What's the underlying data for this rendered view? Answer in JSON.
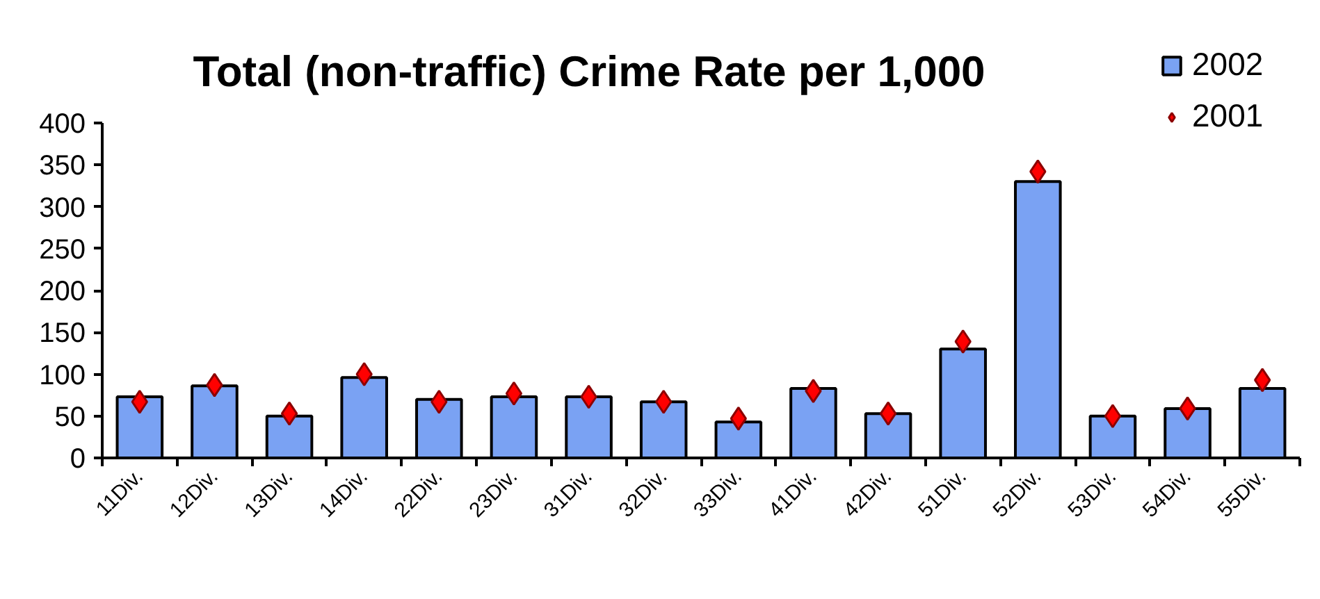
{
  "chart_data": {
    "type": "bar",
    "title": "Total (non-traffic) Crime Rate per 1,000",
    "categories": [
      "11Div.",
      "12Div.",
      "13Div.",
      "14Div.",
      "22Div.",
      "23Div.",
      "31Div.",
      "32Div.",
      "33Div.",
      "41Div.",
      "42Div.",
      "51Div.",
      "52Div.",
      "53Div.",
      "54Div.",
      "55Div."
    ],
    "series": [
      {
        "name": "2002",
        "color": "#7aa2f3",
        "values": [
          73,
          86,
          50,
          96,
          70,
          73,
          73,
          67,
          43,
          83,
          53,
          130,
          330,
          50,
          59,
          83
        ]
      },
      {
        "name": "2001",
        "type": "scatter",
        "color": "#ff0000",
        "values": [
          67,
          87,
          53,
          100,
          67,
          77,
          73,
          67,
          47,
          80,
          53,
          139,
          342,
          50,
          59,
          93
        ]
      }
    ],
    "marker": "diamond",
    "ylim": [
      0,
      400
    ],
    "yticks": [
      0,
      50,
      100,
      150,
      200,
      250,
      300,
      350,
      400
    ],
    "grid": false,
    "legend": "top right"
  }
}
